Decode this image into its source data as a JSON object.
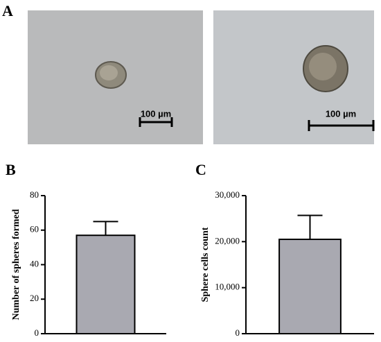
{
  "panels": [
    {
      "label": "A"
    },
    {
      "label": "B"
    },
    {
      "label": "C"
    }
  ],
  "images": [
    {
      "scale_bar": "100 µm"
    },
    {
      "scale_bar": "100 µm"
    }
  ],
  "chart_data": [
    {
      "type": "bar",
      "ylabel": "Number of spheres formed",
      "values": [
        57
      ],
      "errors": [
        8
      ],
      "color": "#a9a9b1",
      "ylim": [
        0,
        80
      ],
      "yticks": [
        0,
        20,
        40,
        60,
        80
      ]
    },
    {
      "type": "bar",
      "ylabel": "Sphere cells count",
      "values": [
        20500
      ],
      "errors": [
        5200
      ],
      "color": "#a9a9b1",
      "ylim": [
        0,
        30000
      ],
      "yticks": [
        0,
        {
          "value": 10000,
          "label": "10,000"
        },
        {
          "value": 20000,
          "label": "20,000"
        },
        {
          "value": 30000,
          "label": "30,000"
        }
      ]
    }
  ]
}
